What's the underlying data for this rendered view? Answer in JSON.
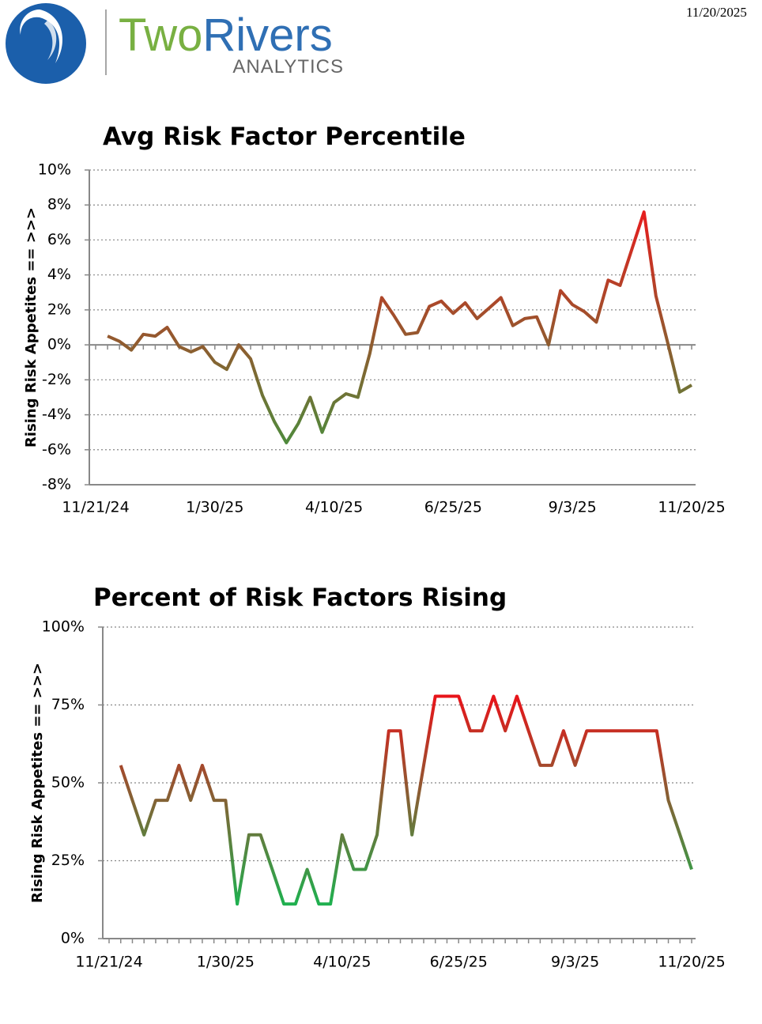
{
  "header": {
    "logo_word1": "Two",
    "logo_word2": "Rivers",
    "logo_sub": "ANALYTICS",
    "date": "11/20/2025"
  },
  "chart_data": [
    {
      "type": "line",
      "title": "Avg Risk Factor Percentile",
      "y_label": "Rising Risk Appetites == >>>",
      "color_low": "#4f8a3c",
      "color_high": "#e61e1e",
      "grid": true,
      "categories": [
        "11/21/24",
        null,
        null,
        null,
        null,
        null,
        null,
        null,
        null,
        null,
        "1/30/25",
        null,
        null,
        null,
        null,
        null,
        null,
        null,
        null,
        null,
        "4/10/25",
        null,
        null,
        null,
        null,
        null,
        null,
        null,
        null,
        null,
        "6/25/25",
        null,
        null,
        null,
        null,
        null,
        null,
        null,
        null,
        null,
        "9/3/25",
        null,
        null,
        null,
        null,
        null,
        null,
        null,
        null,
        null,
        "11/20/25"
      ],
      "values": [
        null,
        0.5,
        0.2,
        -0.3,
        0.6,
        0.5,
        1.0,
        -0.1,
        -0.4,
        -0.1,
        -1.0,
        -1.4,
        0,
        -0.8,
        -2.9,
        -4.4,
        -5.6,
        -4.5,
        -3.0,
        -5.0,
        -3.3,
        -2.8,
        -3.0,
        -0.5,
        2.7,
        1.7,
        0.6,
        0.7,
        2.2,
        2.5,
        1.8,
        2.4,
        1.5,
        2.1,
        2.7,
        1.1,
        1.5,
        1.6,
        0,
        3.1,
        2.3,
        1.9,
        1.3,
        3.7,
        3.4,
        5.5,
        7.6,
        2.8,
        0.1,
        -2.7,
        -2.3
      ],
      "ylim": [
        -8,
        10
      ],
      "yticks": [
        {
          "value": -8,
          "label": "-8%"
        },
        {
          "value": -6,
          "label": "-6%"
        },
        {
          "value": -4,
          "label": "-4%"
        },
        {
          "value": -2,
          "label": "-2%"
        },
        {
          "value": 0,
          "label": "0%"
        },
        {
          "value": 2,
          "label": "2%"
        },
        {
          "value": 4,
          "label": "4%"
        },
        {
          "value": 6,
          "label": "6%"
        },
        {
          "value": 8,
          "label": "8%"
        },
        {
          "value": 10,
          "label": "10%"
        }
      ]
    },
    {
      "type": "line",
      "title": "Percent of Risk Factors Rising",
      "y_label": "Rising Risk Appetites == >>>",
      "color_low": "#1fb04f",
      "color_high": "#e8141a",
      "grid": true,
      "categories": [
        "11/21/24",
        null,
        null,
        null,
        null,
        null,
        null,
        null,
        null,
        null,
        "1/30/25",
        null,
        null,
        null,
        null,
        null,
        null,
        null,
        null,
        null,
        "4/10/25",
        null,
        null,
        null,
        null,
        null,
        null,
        null,
        null,
        null,
        "6/25/25",
        null,
        null,
        null,
        null,
        null,
        null,
        null,
        null,
        null,
        "9/3/25",
        null,
        null,
        null,
        null,
        null,
        null,
        null,
        null,
        null,
        "11/20/25"
      ],
      "values": [
        null,
        55.6,
        44.4,
        33.3,
        44.4,
        44.4,
        55.6,
        44.4,
        55.6,
        44.4,
        44.4,
        11.1,
        33.3,
        33.3,
        22.2,
        11.1,
        11.1,
        22.2,
        11.1,
        11.1,
        33.3,
        22.2,
        22.2,
        33.3,
        66.7,
        66.7,
        33.3,
        55.6,
        77.8,
        77.8,
        77.8,
        66.7,
        66.7,
        77.8,
        66.7,
        77.8,
        66.7,
        55.6,
        55.6,
        66.7,
        55.6,
        66.7,
        66.7,
        66.7,
        66.7,
        66.7,
        66.7,
        66.7,
        44.4,
        33.3,
        22.2
      ],
      "ylim": [
        0,
        100
      ],
      "yticks": [
        {
          "value": 0,
          "label": "0%"
        },
        {
          "value": 25,
          "label": "25%"
        },
        {
          "value": 50,
          "label": "50%"
        },
        {
          "value": 75,
          "label": "75%"
        },
        {
          "value": 100,
          "label": "100%"
        }
      ]
    }
  ]
}
